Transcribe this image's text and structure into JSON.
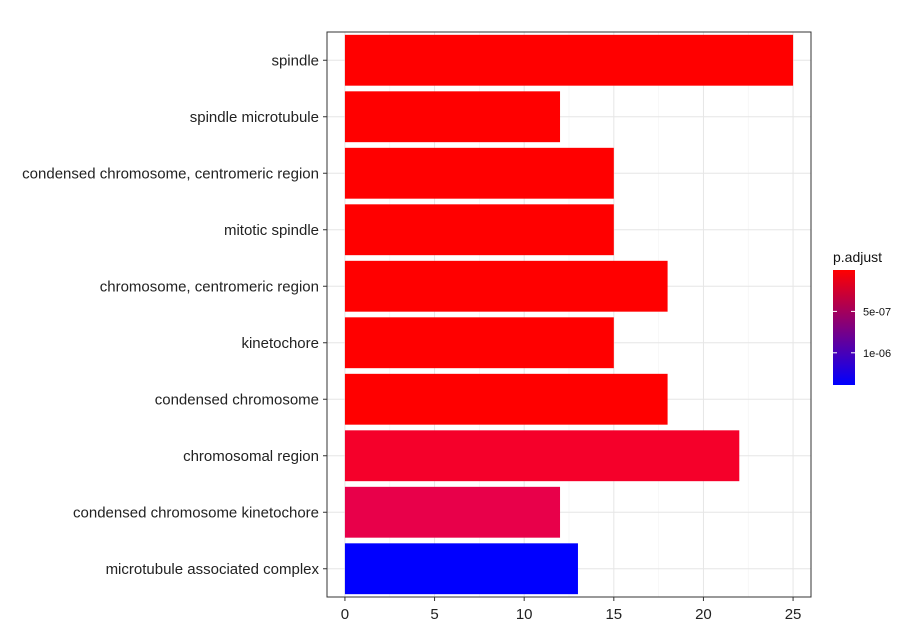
{
  "chart_data": {
    "type": "bar",
    "orientation": "horizontal",
    "title": "",
    "xlabel": "",
    "ylabel": "",
    "categories": [
      "spindle",
      "spindle microtubule",
      "condensed chromosome, centromeric region",
      "mitotic spindle",
      "chromosome, centromeric region",
      "kinetochore",
      "condensed chromosome",
      "chromosomal region",
      "condensed chromosome kinetochore",
      "microtubule associated complex"
    ],
    "values": [
      25,
      12,
      15,
      15,
      18,
      15,
      18,
      22,
      12,
      13
    ],
    "bar_colors": [
      "#ff0000",
      "#ff0000",
      "#ff0000",
      "#ff0000",
      "#ff0000",
      "#ff0000",
      "#ff0000",
      "#f5002a",
      "#e8004a",
      "#0000ff"
    ],
    "xlim": [
      -1,
      26
    ],
    "xticks": [
      "0",
      "5",
      "10",
      "15",
      "20",
      "25"
    ],
    "grid": true,
    "legend": {
      "title": "p.adjust",
      "placement": "right",
      "gradient": [
        "#ff0000",
        "#0000ff"
      ],
      "labels": [
        "5e-07",
        "1e-06"
      ]
    }
  }
}
